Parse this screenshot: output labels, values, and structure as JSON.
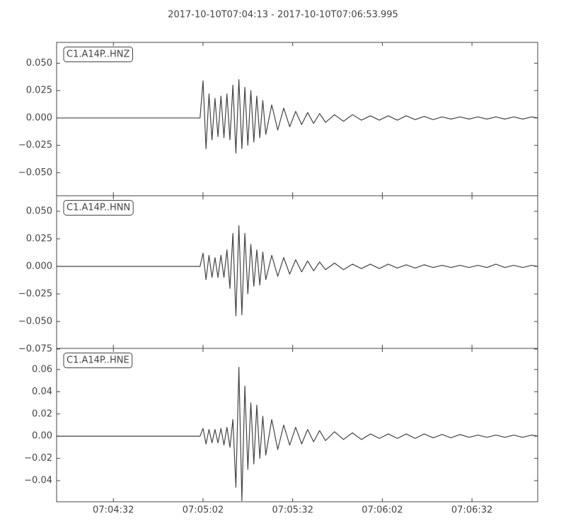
{
  "title": "2017-10-10T07:04:13  -  2017-10-10T07:06:53.995",
  "chart_data": [
    {
      "type": "line",
      "title": "C1.A14P..HNZ",
      "color": "#444444",
      "xlim": [
        0,
        160.995
      ],
      "ylim": [
        -0.071,
        0.069
      ],
      "yticks": [
        {
          "value": -0.05,
          "label": "−0.050"
        },
        {
          "value": -0.025,
          "label": "−0.025"
        },
        {
          "value": 0,
          "label": "0.000"
        },
        {
          "value": 0.025,
          "label": "0.025"
        },
        {
          "value": 0.05,
          "label": "0.050"
        }
      ],
      "x": [
        0,
        48,
        49,
        50,
        51,
        52,
        53,
        54,
        55,
        56,
        57,
        58,
        59,
        60,
        61,
        62,
        63,
        64,
        65,
        66,
        67,
        68,
        69,
        70,
        72,
        74,
        76,
        78,
        80,
        82,
        84,
        86,
        88,
        90,
        93,
        96,
        99,
        102,
        105,
        108,
        111,
        114,
        117,
        120,
        123,
        126,
        129,
        132,
        135,
        138,
        141,
        144,
        147,
        150,
        153,
        156,
        159,
        161
      ],
      "values": [
        0,
        0,
        0.034,
        -0.028,
        0.022,
        -0.02,
        0.018,
        -0.017,
        0.02,
        -0.018,
        0.022,
        -0.02,
        0.03,
        -0.032,
        0.035,
        -0.028,
        0.028,
        -0.025,
        0.025,
        -0.022,
        0.02,
        -0.018,
        0.016,
        -0.015,
        0.012,
        -0.011,
        0.009,
        -0.008,
        0.006,
        -0.006,
        0.005,
        -0.005,
        0.004,
        -0.004,
        0.003,
        -0.003,
        0.003,
        -0.002,
        0.002,
        -0.002,
        0.002,
        -0.002,
        0.002,
        -0.0015,
        0.0015,
        -0.0015,
        0.001,
        -0.001,
        0.001,
        -0.001,
        0.001,
        -0.001,
        0.001,
        -0.001,
        0.001,
        -0.001,
        0.001,
        0
      ]
    },
    {
      "type": "line",
      "title": "C1.A14P..HNN",
      "color": "#444444",
      "xlim": [
        0,
        160.995
      ],
      "ylim": [
        -0.0744,
        0.0641
      ],
      "yticks": [
        {
          "value": -0.075,
          "label": "−0.075"
        },
        {
          "value": -0.05,
          "label": "−0.050"
        },
        {
          "value": -0.025,
          "label": "−0.025"
        },
        {
          "value": 0,
          "label": "0.000"
        },
        {
          "value": 0.025,
          "label": "0.025"
        },
        {
          "value": 0.05,
          "label": "0.050"
        }
      ],
      "x": [
        0,
        48,
        49,
        50,
        51,
        52,
        53,
        54,
        55,
        56,
        57,
        58,
        59,
        60,
        61,
        62,
        63,
        64,
        65,
        66,
        67,
        68,
        69,
        70,
        72,
        74,
        76,
        78,
        80,
        82,
        84,
        86,
        88,
        90,
        93,
        96,
        99,
        102,
        105,
        108,
        111,
        114,
        117,
        120,
        123,
        126,
        129,
        132,
        135,
        138,
        141,
        144,
        147,
        150,
        153,
        156,
        159,
        161
      ],
      "values": [
        0,
        0,
        0.012,
        -0.012,
        0.01,
        -0.01,
        0.008,
        -0.01,
        0.01,
        -0.01,
        0.015,
        -0.02,
        0.03,
        -0.045,
        0.037,
        -0.044,
        0.03,
        -0.025,
        0.02,
        -0.018,
        0.015,
        -0.017,
        0.013,
        -0.012,
        0.01,
        -0.009,
        0.008,
        -0.007,
        0.006,
        -0.005,
        0.005,
        -0.004,
        0.004,
        -0.003,
        0.003,
        -0.003,
        0.002,
        -0.002,
        0.002,
        -0.002,
        0.002,
        -0.0015,
        0.0015,
        -0.0015,
        0.0015,
        -0.001,
        0.001,
        -0.001,
        0.001,
        -0.001,
        0.001,
        -0.001,
        0.002,
        -0.001,
        0.001,
        -0.001,
        0.001,
        0
      ]
    },
    {
      "type": "line",
      "title": "C1.A14P..HNE",
      "color": "#444444",
      "xlim": [
        0,
        160.995
      ],
      "ylim": [
        -0.059,
        0.079
      ],
      "yticks": [
        {
          "value": -0.04,
          "label": "−0.04"
        },
        {
          "value": -0.02,
          "label": "−0.02"
        },
        {
          "value": 0,
          "label": "0.00"
        },
        {
          "value": 0.02,
          "label": "0.02"
        },
        {
          "value": 0.04,
          "label": "0.04"
        },
        {
          "value": 0.06,
          "label": "0.06"
        }
      ],
      "xticks": [
        {
          "value": 19,
          "label": "07:04:32"
        },
        {
          "value": 49,
          "label": "07:05:02"
        },
        {
          "value": 79,
          "label": "07:05:32"
        },
        {
          "value": 109,
          "label": "07:06:02"
        },
        {
          "value": 139,
          "label": "07:06:32"
        }
      ],
      "x": [
        0,
        48,
        49,
        50,
        51,
        52,
        53,
        54,
        55,
        56,
        57,
        58,
        59,
        60,
        61,
        62,
        63,
        64,
        65,
        66,
        67,
        68,
        69,
        70,
        72,
        74,
        76,
        78,
        80,
        82,
        84,
        86,
        88,
        90,
        93,
        96,
        99,
        102,
        105,
        108,
        111,
        114,
        117,
        120,
        123,
        126,
        129,
        132,
        135,
        138,
        141,
        144,
        147,
        150,
        153,
        156,
        159,
        161
      ],
      "values": [
        0,
        0,
        0.007,
        -0.007,
        0.006,
        -0.006,
        0.006,
        -0.006,
        0.007,
        -0.008,
        0.008,
        -0.01,
        0.015,
        -0.046,
        0.062,
        -0.058,
        0.045,
        -0.03,
        0.03,
        -0.025,
        0.028,
        -0.02,
        0.018,
        -0.017,
        0.015,
        -0.012,
        0.01,
        -0.008,
        0.008,
        -0.007,
        0.006,
        -0.005,
        0.005,
        -0.004,
        0.004,
        -0.003,
        0.003,
        -0.003,
        0.002,
        -0.002,
        0.002,
        -0.002,
        0.002,
        -0.002,
        0.002,
        -0.0015,
        0.0015,
        -0.0015,
        0.0015,
        -0.001,
        0.001,
        -0.001,
        0.001,
        -0.001,
        0.001,
        -0.001,
        0.001,
        0
      ]
    }
  ]
}
